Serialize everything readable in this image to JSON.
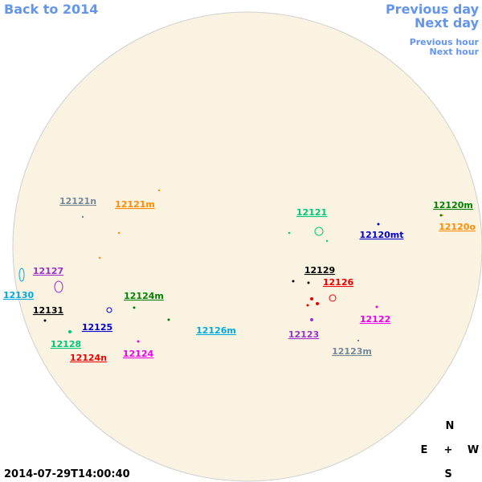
{
  "navigation": {
    "back": "Back to 2014",
    "previous_day": "Previous day",
    "next_day": "Next day",
    "previous_hour": "Previous hour",
    "next_hour": "Next hour"
  },
  "regions": [
    {
      "label": "12121n",
      "color": "#778899"
    },
    {
      "label": "12121m",
      "color": "#ff8c00"
    },
    {
      "label": "12121",
      "color": "#00c87a"
    },
    {
      "label": "12120m",
      "color": "#008000"
    },
    {
      "label": "12120mt",
      "color": "#0000cd"
    },
    {
      "label": "12120o",
      "color": "#ff8c00"
    },
    {
      "label": "12129",
      "color": "#000000"
    },
    {
      "label": "12126",
      "color": "#ee0000"
    },
    {
      "label": "12127",
      "color": "#9932cc"
    },
    {
      "label": "12130",
      "color": "#00aadd"
    },
    {
      "label": "12124m",
      "color": "#008000"
    },
    {
      "label": "12131",
      "color": "#000000"
    },
    {
      "label": "12125",
      "color": "#0000cd"
    },
    {
      "label": "12126m",
      "color": "#00aadd"
    },
    {
      "label": "12123",
      "color": "#9932cc"
    },
    {
      "label": "12122",
      "color": "#ee00ee"
    },
    {
      "label": "12123m",
      "color": "#778899"
    },
    {
      "label": "12128",
      "color": "#00c87a"
    },
    {
      "label": "12124n",
      "color": "#ee0000"
    },
    {
      "label": "12124",
      "color": "#ee00ee"
    }
  ],
  "compass": {
    "north": "N",
    "east": "E",
    "center": "+",
    "west": "W",
    "south": "S"
  },
  "timestamp": "2014-07-29T14:00:40"
}
